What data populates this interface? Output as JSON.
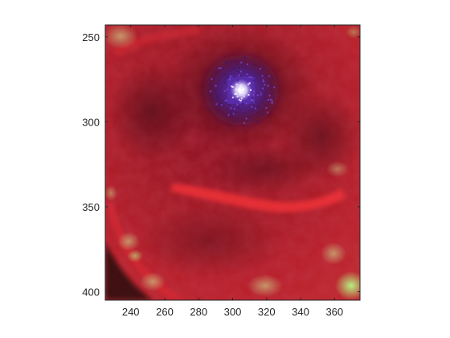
{
  "figure": {
    "background": "#ffffff",
    "axes_color": "#262626"
  },
  "image": {
    "description_colors": {
      "dominant": "#b81f2a",
      "dark_region": "#5c0f18",
      "center_glow": "#5a2ca8",
      "center_core": "#ffffff",
      "highlight_band": "#ee2a36",
      "edge_green": "#a8e07a"
    }
  },
  "chart_data": {
    "type": "heatmap",
    "title": "",
    "xlabel": "",
    "ylabel": "",
    "xlim": [
      225,
      375
    ],
    "ylim": [
      405,
      243
    ],
    "x_ticks": [
      240,
      260,
      280,
      300,
      320,
      340,
      360
    ],
    "y_ticks": [
      250,
      300,
      350,
      400
    ],
    "grid": false
  }
}
